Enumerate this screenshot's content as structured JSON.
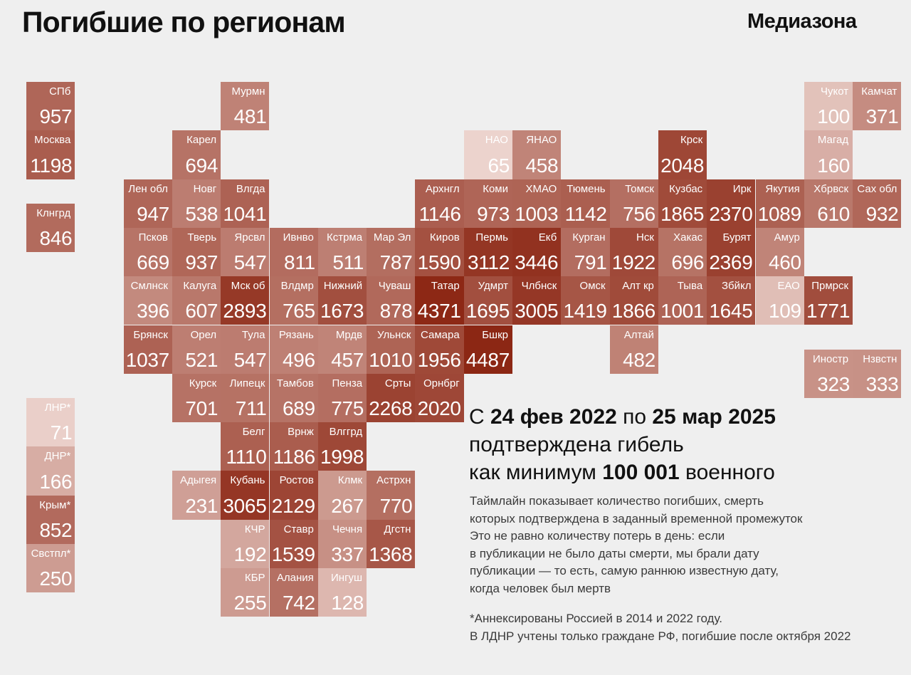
{
  "title": "Погибшие по регионам",
  "brand": "Медиазона",
  "summary": {
    "prefix": "С ",
    "date_from": "24 фев 2022",
    "between": " по ",
    "date_to": "25 мар 2025",
    "line2": "подтверждена гибель",
    "line3_prefix": "как минимум ",
    "total": "100 001",
    "line3_suffix": " военного"
  },
  "description": [
    "Таймлайн показывает количество погибших, смерть",
    "которых подтверждена в заданный временной промежуток",
    "Это не равно количеству потерь в день: если",
    "в публикации не было даты смерти, мы брали дату",
    "публикации — то есть, самую раннюю известную дату,",
    "когда человек был мертв"
  ],
  "footnote": [
    "*Аннексированы Россией в 2014 и 2022 году.",
    "В ЛДНР учтены только граждане РФ, погибшие после октября 2022"
  ],
  "color_scale": {
    "min": 65,
    "max": 4487,
    "light": "#ecd3cd",
    "dark": "#8c2714"
  },
  "regions": [
    {
      "label": "СПб",
      "value": 957,
      "col": 0,
      "row": 0
    },
    {
      "label": "Мурмн",
      "value": 481,
      "col": 4,
      "row": 0
    },
    {
      "label": "Чукот",
      "value": 100,
      "col": 16,
      "row": 0
    },
    {
      "label": "Камчат",
      "value": 371,
      "col": 17,
      "row": 0
    },
    {
      "label": "Москва",
      "value": 1198,
      "col": 0,
      "row": 1
    },
    {
      "label": "Карел",
      "value": 694,
      "col": 3,
      "row": 1
    },
    {
      "label": "НАО",
      "value": 65,
      "col": 9,
      "row": 1
    },
    {
      "label": "ЯНАО",
      "value": 458,
      "col": 10,
      "row": 1
    },
    {
      "label": "Крск",
      "value": 2048,
      "col": 13,
      "row": 1
    },
    {
      "label": "Магад",
      "value": 160,
      "col": 16,
      "row": 1
    },
    {
      "label": "Лен обл",
      "value": 947,
      "col": 2,
      "row": 2
    },
    {
      "label": "Новг",
      "value": 538,
      "col": 3,
      "row": 2
    },
    {
      "label": "Влгда",
      "value": 1041,
      "col": 4,
      "row": 2
    },
    {
      "label": "Архнгл",
      "value": 1146,
      "col": 8,
      "row": 2
    },
    {
      "label": "Коми",
      "value": 973,
      "col": 9,
      "row": 2
    },
    {
      "label": "ХМАО",
      "value": 1003,
      "col": 10,
      "row": 2
    },
    {
      "label": "Тюмень",
      "value": 1142,
      "col": 11,
      "row": 2
    },
    {
      "label": "Томск",
      "value": 756,
      "col": 12,
      "row": 2
    },
    {
      "label": "Кузбас",
      "value": 1865,
      "col": 13,
      "row": 2
    },
    {
      "label": "Ирк",
      "value": 2370,
      "col": 14,
      "row": 2
    },
    {
      "label": "Якутия",
      "value": 1089,
      "col": 15,
      "row": 2
    },
    {
      "label": "Хбрвск",
      "value": 610,
      "col": 16,
      "row": 2
    },
    {
      "label": "Сах обл",
      "value": 932,
      "col": 17,
      "row": 2
    },
    {
      "label": "Клнгрд",
      "value": 846,
      "col": 0,
      "row": 2.5
    },
    {
      "label": "Псков",
      "value": 669,
      "col": 2,
      "row": 3
    },
    {
      "label": "Тверь",
      "value": 937,
      "col": 3,
      "row": 3
    },
    {
      "label": "Ярсвл",
      "value": 547,
      "col": 4,
      "row": 3
    },
    {
      "label": "Ивнво",
      "value": 811,
      "col": 5,
      "row": 3
    },
    {
      "label": "Кстрма",
      "value": 511,
      "col": 6,
      "row": 3
    },
    {
      "label": "Мар Эл",
      "value": 787,
      "col": 7,
      "row": 3
    },
    {
      "label": "Киров",
      "value": 1590,
      "col": 8,
      "row": 3
    },
    {
      "label": "Пермь",
      "value": 3112,
      "col": 9,
      "row": 3
    },
    {
      "label": "Екб",
      "value": 3446,
      "col": 10,
      "row": 3
    },
    {
      "label": "Курган",
      "value": 791,
      "col": 11,
      "row": 3
    },
    {
      "label": "Нск",
      "value": 1922,
      "col": 12,
      "row": 3
    },
    {
      "label": "Хакас",
      "value": 696,
      "col": 13,
      "row": 3
    },
    {
      "label": "Бурят",
      "value": 2369,
      "col": 14,
      "row": 3
    },
    {
      "label": "Амур",
      "value": 460,
      "col": 15,
      "row": 3
    },
    {
      "label": "Смлнск",
      "value": 396,
      "col": 2,
      "row": 4
    },
    {
      "label": "Калуга",
      "value": 607,
      "col": 3,
      "row": 4
    },
    {
      "label": "Мск об",
      "value": 2893,
      "col": 4,
      "row": 4
    },
    {
      "label": "Влдмр",
      "value": 765,
      "col": 5,
      "row": 4
    },
    {
      "label": "Нижний",
      "value": 1673,
      "col": 6,
      "row": 4
    },
    {
      "label": "Чуваш",
      "value": 878,
      "col": 7,
      "row": 4
    },
    {
      "label": "Татар",
      "value": 4371,
      "col": 8,
      "row": 4
    },
    {
      "label": "Удмрт",
      "value": 1695,
      "col": 9,
      "row": 4
    },
    {
      "label": "Члбнск",
      "value": 3005,
      "col": 10,
      "row": 4
    },
    {
      "label": "Омск",
      "value": 1419,
      "col": 11,
      "row": 4
    },
    {
      "label": "Алт кр",
      "value": 1866,
      "col": 12,
      "row": 4
    },
    {
      "label": "Тыва",
      "value": 1001,
      "col": 13,
      "row": 4
    },
    {
      "label": "Збйкл",
      "value": 1645,
      "col": 14,
      "row": 4
    },
    {
      "label": "ЕАО",
      "value": 109,
      "col": 15,
      "row": 4
    },
    {
      "label": "Прмрск",
      "value": 1771,
      "col": 16,
      "row": 4
    },
    {
      "label": "Брянск",
      "value": 1037,
      "col": 2,
      "row": 5
    },
    {
      "label": "Орел",
      "value": 521,
      "col": 3,
      "row": 5
    },
    {
      "label": "Тула",
      "value": 547,
      "col": 4,
      "row": 5
    },
    {
      "label": "Рязань",
      "value": 496,
      "col": 5,
      "row": 5
    },
    {
      "label": "Мрдв",
      "value": 457,
      "col": 6,
      "row": 5
    },
    {
      "label": "Ульнск",
      "value": 1010,
      "col": 7,
      "row": 5
    },
    {
      "label": "Самара",
      "value": 1956,
      "col": 8,
      "row": 5
    },
    {
      "label": "Бшкр",
      "value": 4487,
      "col": 9,
      "row": 5
    },
    {
      "label": "Алтай",
      "value": 482,
      "col": 12,
      "row": 5
    },
    {
      "label": "Иностр",
      "value": 323,
      "col": 16,
      "row": 5.5
    },
    {
      "label": "Нзвстн",
      "value": 333,
      "col": 17,
      "row": 5.5
    },
    {
      "label": "Курск",
      "value": 701,
      "col": 3,
      "row": 6
    },
    {
      "label": "Липецк",
      "value": 711,
      "col": 4,
      "row": 6
    },
    {
      "label": "Тамбов",
      "value": 689,
      "col": 5,
      "row": 6
    },
    {
      "label": "Пенза",
      "value": 775,
      "col": 6,
      "row": 6
    },
    {
      "label": "Срты",
      "value": 2268,
      "col": 7,
      "row": 6
    },
    {
      "label": "Орнбрг",
      "value": 2020,
      "col": 8,
      "row": 6
    },
    {
      "label": "ЛНР*",
      "value": 71,
      "col": 0,
      "row": 6.5
    },
    {
      "label": "Белг",
      "value": 1110,
      "col": 4,
      "row": 7
    },
    {
      "label": "Врнж",
      "value": 1186,
      "col": 5,
      "row": 7
    },
    {
      "label": "Влггрд",
      "value": 1998,
      "col": 6,
      "row": 7
    },
    {
      "label": "ДНР*",
      "value": 166,
      "col": 0,
      "row": 7.5
    },
    {
      "label": "Адыгея",
      "value": 231,
      "col": 3,
      "row": 8
    },
    {
      "label": "Кубань",
      "value": 3065,
      "col": 4,
      "row": 8
    },
    {
      "label": "Ростов",
      "value": 2129,
      "col": 5,
      "row": 8
    },
    {
      "label": "Клмк",
      "value": 267,
      "col": 6,
      "row": 8
    },
    {
      "label": "Астрхн",
      "value": 770,
      "col": 7,
      "row": 8
    },
    {
      "label": "Крым*",
      "value": 852,
      "col": 0,
      "row": 8.5
    },
    {
      "label": "КЧР",
      "value": 192,
      "col": 4,
      "row": 9
    },
    {
      "label": "Ставр",
      "value": 1539,
      "col": 5,
      "row": 9
    },
    {
      "label": "Чечня",
      "value": 337,
      "col": 6,
      "row": 9
    },
    {
      "label": "Дгстн",
      "value": 1368,
      "col": 7,
      "row": 9
    },
    {
      "label": "Свстпл*",
      "value": 250,
      "col": 0,
      "row": 9.5
    },
    {
      "label": "КБР",
      "value": 255,
      "col": 4,
      "row": 10
    },
    {
      "label": "Алания",
      "value": 742,
      "col": 5,
      "row": 10
    },
    {
      "label": "Ингуш",
      "value": 128,
      "col": 6,
      "row": 10
    }
  ]
}
